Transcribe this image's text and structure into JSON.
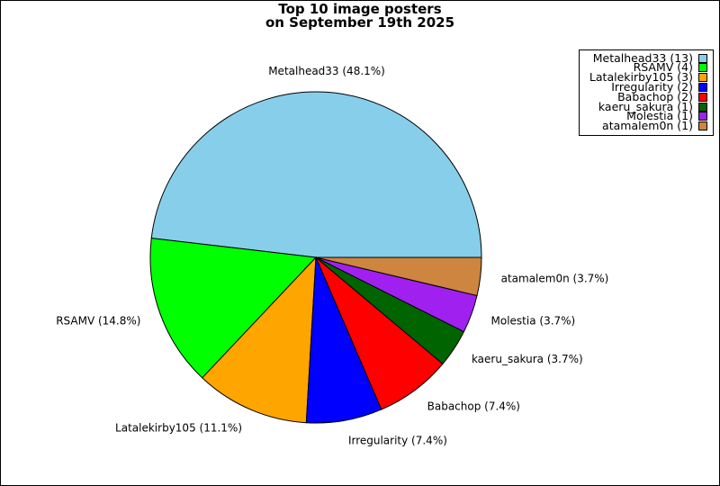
{
  "title_line1": "Top 10 image posters",
  "title_line2": "on September 19th 2025",
  "chart_data": {
    "type": "pie",
    "title": "Top 10 image posters on September 19th 2025",
    "legend_position": "top-right",
    "slices": [
      {
        "name": "Metalhead33",
        "count": 13,
        "percent": 48.1,
        "color": "#87CEEB",
        "legend": "Metalhead33 (13)",
        "label": "Metalhead33 (48.1%)"
      },
      {
        "name": "RSAMV",
        "count": 4,
        "percent": 14.8,
        "color": "#00FF00",
        "legend": "RSAMV (4)",
        "label": "RSAMV (14.8%)"
      },
      {
        "name": "Latalekirby105",
        "count": 3,
        "percent": 11.1,
        "color": "#FFA500",
        "legend": "Latalekirby105 (3)",
        "label": "Latalekirby105 (11.1%)"
      },
      {
        "name": "Irregularity",
        "count": 2,
        "percent": 7.4,
        "color": "#0000FF",
        "legend": "Irregularity (2)",
        "label": "Irregularity (7.4%)"
      },
      {
        "name": "Babachop",
        "count": 2,
        "percent": 7.4,
        "color": "#FF0000",
        "legend": "Babachop (2)",
        "label": "Babachop (7.4%)"
      },
      {
        "name": "kaeru_sakura",
        "count": 1,
        "percent": 3.7,
        "color": "#006400",
        "legend": "kaeru_sakura (1)",
        "label": "kaeru_sakura (3.7%)"
      },
      {
        "name": "Molestia",
        "count": 1,
        "percent": 3.7,
        "color": "#A020F0",
        "legend": "Molestia (1)",
        "label": "Molestia (3.7%)"
      },
      {
        "name": "atamalem0n",
        "count": 1,
        "percent": 3.7,
        "color": "#CD853F",
        "legend": "atamalem0n (1)",
        "label": "atamalem0n (3.7%)"
      }
    ]
  }
}
